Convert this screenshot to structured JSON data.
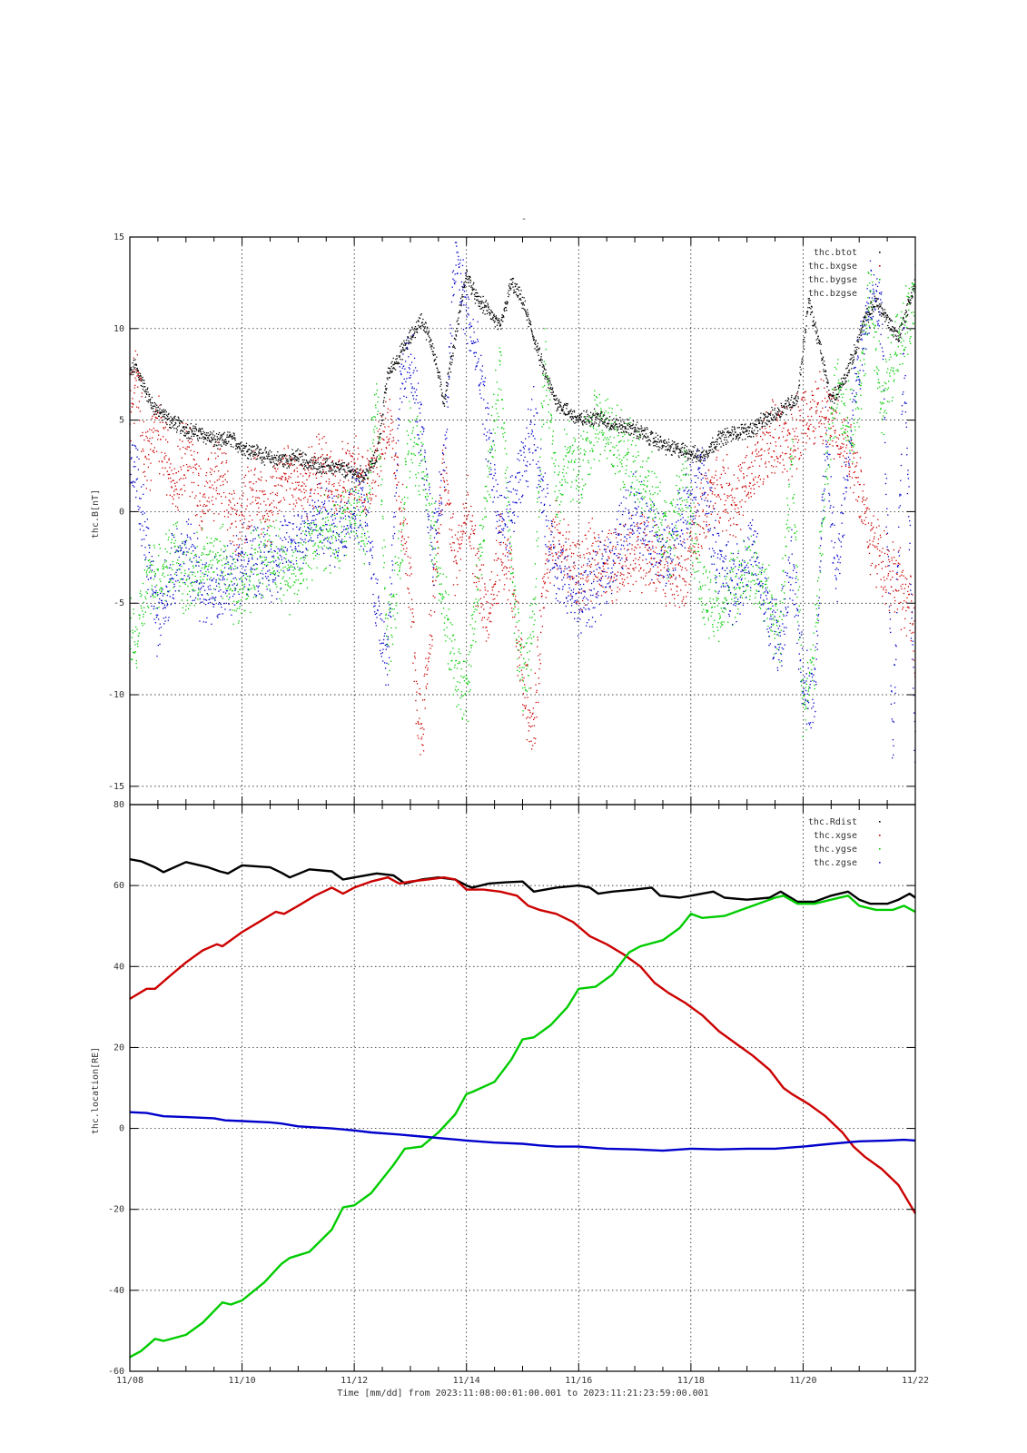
{
  "page": {
    "top_mark": "-"
  },
  "x_axis": {
    "label": "Time [mm/dd]  from 2023:11:08:00:01:00.001  to  2023:11:21:23:59:00.001",
    "range_days": [
      0,
      14
    ],
    "ticks": [
      {
        "day": 0,
        "label": "11/08"
      },
      {
        "day": 2,
        "label": "11/10"
      },
      {
        "day": 4,
        "label": "11/12"
      },
      {
        "day": 6,
        "label": "11/14"
      },
      {
        "day": 8,
        "label": "11/16"
      },
      {
        "day": 10,
        "label": "11/18"
      },
      {
        "day": 12,
        "label": "11/20"
      },
      {
        "day": 14,
        "label": "11/22"
      }
    ]
  },
  "chart_data": [
    {
      "type": "scatter",
      "title": "",
      "ylabel": "thc.B[nT]",
      "ylim": [
        -16,
        15
      ],
      "yticks": [
        15,
        10,
        5,
        0,
        -5,
        -10,
        -15
      ],
      "grid": true,
      "legend_position": "top-right",
      "x_unit": "day since 11/08",
      "series": [
        {
          "name": "thc.btot",
          "color": "#000000",
          "x": [
            0,
            0.1,
            0.2,
            0.4,
            0.7,
            1.0,
            1.3,
            1.6,
            1.8,
            2.0,
            2.3,
            2.5,
            2.8,
            3.0,
            3.2,
            3.5,
            3.8,
            4.0,
            4.2,
            4.4,
            4.6,
            4.8,
            5.0,
            5.2,
            5.4,
            5.6,
            5.8,
            6.0,
            6.2,
            6.4,
            6.6,
            6.8,
            7.0,
            7.2,
            7.4,
            7.6,
            7.8,
            8.0,
            8.3,
            8.6,
            9.0,
            9.3,
            9.6,
            9.9,
            10.2,
            10.5,
            10.8,
            11.1,
            11.3,
            11.5,
            11.7,
            11.9,
            12.1,
            12.3,
            12.5,
            12.7,
            12.9,
            13.1,
            13.3,
            13.5,
            13.7,
            14.0
          ],
          "y": [
            7.5,
            8.0,
            7.2,
            5.8,
            5.0,
            4.5,
            4.2,
            3.8,
            4.0,
            3.5,
            3.2,
            2.9,
            2.8,
            3.0,
            2.6,
            2.5,
            2.3,
            2.1,
            2.0,
            3.0,
            7.5,
            8.5,
            9.5,
            10.5,
            9.0,
            6.0,
            9.5,
            13.0,
            11.5,
            11.0,
            10.0,
            12.5,
            11.5,
            9.5,
            7.5,
            6.0,
            5.5,
            5.0,
            5.2,
            4.8,
            4.5,
            4.0,
            3.5,
            3.3,
            3.0,
            4.0,
            4.3,
            4.5,
            5.0,
            5.3,
            5.8,
            6.2,
            11.5,
            9.0,
            6.0,
            7.0,
            8.5,
            10.5,
            11.5,
            10.5,
            9.5,
            12.5
          ]
        },
        {
          "name": "thc.bxgse",
          "color": "#cc0000",
          "x": [
            0,
            0.1,
            0.3,
            0.5,
            0.8,
            1.0,
            1.3,
            1.6,
            1.9,
            2.2,
            2.5,
            2.8,
            3.1,
            3.4,
            3.7,
            4.0,
            4.2,
            4.4,
            4.6,
            4.8,
            5.0,
            5.1,
            5.2,
            5.4,
            5.6,
            5.8,
            6.0,
            6.2,
            6.4,
            6.6,
            6.8,
            7.0,
            7.2,
            7.4,
            7.6,
            7.8,
            8.0,
            8.3,
            8.6,
            9.0,
            9.3,
            9.6,
            9.9,
            10.2,
            10.5,
            10.8,
            11.1,
            11.4,
            11.7,
            12.0,
            12.3,
            12.6,
            12.9,
            13.2,
            13.5,
            13.7,
            13.9,
            14.0
          ],
          "y": [
            5.0,
            7.5,
            3.0,
            4.5,
            1.5,
            3.5,
            0.5,
            2.0,
            -1.0,
            1.5,
            0.0,
            2.5,
            1.0,
            2.5,
            1.8,
            2.0,
            1.5,
            3.0,
            5.0,
            1.0,
            -4.0,
            -10.0,
            -12.0,
            -5.0,
            2.5,
            -3.0,
            0.0,
            -3.5,
            -6.0,
            -2.0,
            -4.0,
            -9.0,
            -12.0,
            -3.0,
            -1.5,
            -2.5,
            -3.5,
            -2.5,
            -3.0,
            -2.0,
            -2.5,
            -3.0,
            -3.5,
            0.0,
            1.5,
            0.5,
            2.0,
            4.0,
            3.5,
            5.0,
            5.5,
            4.5,
            3.0,
            -1.5,
            -3.0,
            -4.0,
            -5.0,
            -8.0
          ]
        },
        {
          "name": "thc.bygse",
          "color": "#00cc00",
          "x": [
            0,
            0.1,
            0.3,
            0.5,
            0.8,
            1.0,
            1.3,
            1.6,
            1.9,
            2.2,
            2.5,
            2.8,
            3.1,
            3.4,
            3.7,
            4.0,
            4.2,
            4.4,
            4.6,
            4.8,
            5.0,
            5.2,
            5.4,
            5.6,
            5.8,
            6.0,
            6.2,
            6.4,
            6.6,
            6.8,
            7.0,
            7.2,
            7.4,
            7.6,
            7.8,
            8.0,
            8.3,
            8.6,
            9.0,
            9.3,
            9.6,
            9.9,
            10.2,
            10.5,
            10.8,
            11.1,
            11.4,
            11.6,
            11.8,
            12.0,
            12.2,
            12.4,
            12.6,
            12.9,
            13.2,
            13.4,
            13.6,
            13.8,
            14.0
          ],
          "y": [
            -6.0,
            -7.5,
            -4.0,
            -3.5,
            -2.0,
            -4.0,
            -3.0,
            -2.5,
            -4.5,
            -3.0,
            -2.0,
            -3.5,
            -2.5,
            -1.0,
            -1.5,
            0.5,
            -1.5,
            6.5,
            -7.0,
            -3.0,
            4.5,
            2.5,
            -1.0,
            -5.0,
            -9.0,
            -10.0,
            -4.0,
            2.0,
            8.0,
            -3.0,
            -9.5,
            -6.0,
            8.5,
            1.0,
            3.0,
            2.0,
            5.0,
            4.0,
            2.5,
            1.0,
            -2.0,
            2.0,
            -4.5,
            -5.0,
            -4.0,
            -3.0,
            -5.0,
            -6.5,
            3.0,
            -10.5,
            -8.0,
            2.0,
            7.0,
            4.0,
            12.0,
            6.0,
            8.0,
            10.0,
            11.5
          ]
        },
        {
          "name": "thc.bzgse",
          "color": "#0000cc",
          "x": [
            0,
            0.1,
            0.3,
            0.5,
            0.8,
            1.0,
            1.3,
            1.6,
            1.9,
            2.2,
            2.5,
            2.8,
            3.1,
            3.4,
            3.7,
            4.0,
            4.2,
            4.4,
            4.6,
            4.8,
            5.0,
            5.2,
            5.4,
            5.6,
            5.8,
            6.0,
            6.2,
            6.4,
            6.6,
            6.8,
            7.0,
            7.2,
            7.4,
            7.6,
            7.8,
            8.0,
            8.3,
            8.6,
            9.0,
            9.3,
            9.6,
            9.9,
            10.2,
            10.5,
            10.8,
            11.1,
            11.4,
            11.6,
            11.8,
            12.0,
            12.2,
            12.4,
            12.6,
            12.9,
            13.2,
            13.4,
            13.6,
            13.8,
            14.0
          ],
          "y": [
            1.0,
            3.0,
            -2.0,
            -6.0,
            -3.0,
            -2.0,
            -4.0,
            -4.5,
            -3.0,
            -2.5,
            -3.0,
            -2.0,
            -1.0,
            -0.5,
            -1.0,
            0.5,
            0.0,
            -5.0,
            -8.0,
            6.0,
            8.5,
            4.0,
            -2.0,
            2.5,
            14.0,
            11.0,
            8.0,
            4.0,
            -1.0,
            0.0,
            2.0,
            5.0,
            0.0,
            -3.0,
            -4.0,
            -5.0,
            -4.0,
            -2.5,
            0.5,
            -1.5,
            -2.5,
            0.0,
            2.0,
            -3.0,
            -4.0,
            -2.0,
            -6.0,
            -7.0,
            -3.0,
            -9.0,
            -10.5,
            4.0,
            -4.0,
            6.5,
            12.0,
            11.0,
            -12.5,
            9.0,
            -13.0
          ]
        }
      ]
    },
    {
      "type": "line",
      "title": "",
      "ylabel": "thc.location[RE]",
      "ylim": [
        -60,
        80
      ],
      "yticks": [
        80,
        60,
        40,
        20,
        0,
        -20,
        -40,
        -60
      ],
      "grid": true,
      "legend_position": "top-right",
      "x_unit": "day since 11/08",
      "series": [
        {
          "name": "thc.Rdist",
          "color": "#000000",
          "x": [
            0,
            0.2,
            0.45,
            0.6,
            1.0,
            1.4,
            1.6,
            1.75,
            2.0,
            2.5,
            2.7,
            2.85,
            3.2,
            3.6,
            3.8,
            4.0,
            4.4,
            4.7,
            4.9,
            5.2,
            5.5,
            5.8,
            6.0,
            6.1,
            6.4,
            6.7,
            7.0,
            7.2,
            7.6,
            8.0,
            8.2,
            8.35,
            8.6,
            9.0,
            9.3,
            9.45,
            9.8,
            10.2,
            10.4,
            10.6,
            11.0,
            11.4,
            11.6,
            11.9,
            12.2,
            12.5,
            12.8,
            13.0,
            13.2,
            13.5,
            13.7,
            13.9,
            14.0
          ],
          "y": [
            66.5,
            66.0,
            64.5,
            63.3,
            65.8,
            64.5,
            63.5,
            63.0,
            65.0,
            64.5,
            63.2,
            62.0,
            64.0,
            63.5,
            61.5,
            62.0,
            63.0,
            62.5,
            60.5,
            61.5,
            62.0,
            61.5,
            60.0,
            59.5,
            60.5,
            60.8,
            61.0,
            58.5,
            59.5,
            60.0,
            59.5,
            58.0,
            58.5,
            59.0,
            59.5,
            57.5,
            57.0,
            58.0,
            58.5,
            57.0,
            56.5,
            57.0,
            58.5,
            56.0,
            56.0,
            57.5,
            58.5,
            56.5,
            55.5,
            55.5,
            56.5,
            58.0,
            57.0
          ]
        },
        {
          "name": "thc.xgse",
          "color": "#cc0000",
          "x": [
            0,
            0.3,
            0.45,
            0.7,
            1.0,
            1.3,
            1.55,
            1.65,
            2.0,
            2.3,
            2.6,
            2.75,
            3.0,
            3.3,
            3.6,
            3.8,
            4.0,
            4.3,
            4.6,
            4.8,
            5.0,
            5.3,
            5.6,
            5.8,
            6.0,
            6.3,
            6.6,
            6.9,
            7.1,
            7.3,
            7.6,
            7.9,
            8.2,
            8.5,
            8.8,
            9.1,
            9.35,
            9.6,
            9.9,
            10.2,
            10.5,
            10.8,
            11.1,
            11.4,
            11.65,
            11.8,
            12.1,
            12.4,
            12.7,
            12.9,
            13.1,
            13.4,
            13.7,
            14.0
          ],
          "y": [
            32.0,
            34.5,
            34.5,
            37.5,
            41.0,
            44.0,
            45.5,
            45.0,
            48.5,
            51.0,
            53.5,
            53.0,
            55.0,
            57.5,
            59.5,
            58.0,
            59.5,
            61.0,
            62.0,
            60.5,
            61.0,
            61.5,
            62.0,
            61.5,
            59.0,
            59.0,
            58.5,
            57.5,
            55.0,
            54.0,
            53.0,
            51.0,
            47.5,
            45.5,
            43.0,
            40.0,
            36.0,
            33.5,
            31.0,
            28.0,
            24.0,
            21.0,
            18.0,
            14.5,
            10.0,
            8.5,
            6.0,
            3.0,
            -1.0,
            -4.5,
            -7.0,
            -10.0,
            -14.0,
            -21.0
          ]
        },
        {
          "name": "thc.ygse",
          "color": "#00cc00",
          "x": [
            0,
            0.2,
            0.45,
            0.6,
            1.0,
            1.3,
            1.65,
            1.8,
            2.0,
            2.4,
            2.7,
            2.85,
            3.2,
            3.6,
            3.8,
            4.0,
            4.3,
            4.7,
            4.9,
            5.2,
            5.5,
            5.8,
            6.0,
            6.1,
            6.5,
            6.8,
            7.0,
            7.2,
            7.5,
            7.8,
            8.0,
            8.3,
            8.6,
            8.9,
            9.1,
            9.5,
            9.8,
            10.0,
            10.2,
            10.6,
            10.9,
            11.2,
            11.5,
            11.65,
            11.9,
            12.2,
            12.5,
            12.8,
            13.0,
            13.3,
            13.6,
            13.8,
            14.0
          ],
          "y": [
            -56.5,
            -55.0,
            -52.0,
            -52.5,
            -51.0,
            -48.0,
            -43.0,
            -43.5,
            -42.5,
            -38.0,
            -33.5,
            -32.0,
            -30.5,
            -25.0,
            -19.5,
            -19.0,
            -16.0,
            -9.0,
            -5.0,
            -4.5,
            -1.0,
            3.5,
            8.5,
            9.0,
            11.5,
            17.0,
            22.0,
            22.5,
            25.5,
            30.0,
            34.5,
            35.0,
            38.0,
            43.5,
            45.0,
            46.5,
            49.5,
            53.0,
            52.0,
            52.5,
            54.0,
            55.5,
            57.0,
            57.5,
            55.5,
            55.5,
            56.5,
            57.5,
            55.0,
            54.0,
            54.0,
            55.0,
            53.5
          ]
        },
        {
          "name": "thc.zgse",
          "color": "#0000cc",
          "x": [
            0,
            0.3,
            0.6,
            1.0,
            1.5,
            1.7,
            2.0,
            2.5,
            2.7,
            3.0,
            3.6,
            4.0,
            4.3,
            4.8,
            5.2,
            5.6,
            6.0,
            6.5,
            7.0,
            7.3,
            7.6,
            8.0,
            8.5,
            9.0,
            9.5,
            10.0,
            10.5,
            11.0,
            11.5,
            12.0,
            12.5,
            13.0,
            13.5,
            13.8,
            14.0
          ],
          "y": [
            4.0,
            3.8,
            3.0,
            2.8,
            2.5,
            2.0,
            1.8,
            1.5,
            1.2,
            0.5,
            0.0,
            -0.5,
            -1.0,
            -1.5,
            -2.0,
            -2.5,
            -3.0,
            -3.5,
            -3.8,
            -4.2,
            -4.5,
            -4.5,
            -5.0,
            -5.2,
            -5.5,
            -5.0,
            -5.2,
            -5.0,
            -5.0,
            -4.5,
            -3.8,
            -3.2,
            -3.0,
            -2.8,
            -3.0
          ]
        }
      ]
    }
  ]
}
